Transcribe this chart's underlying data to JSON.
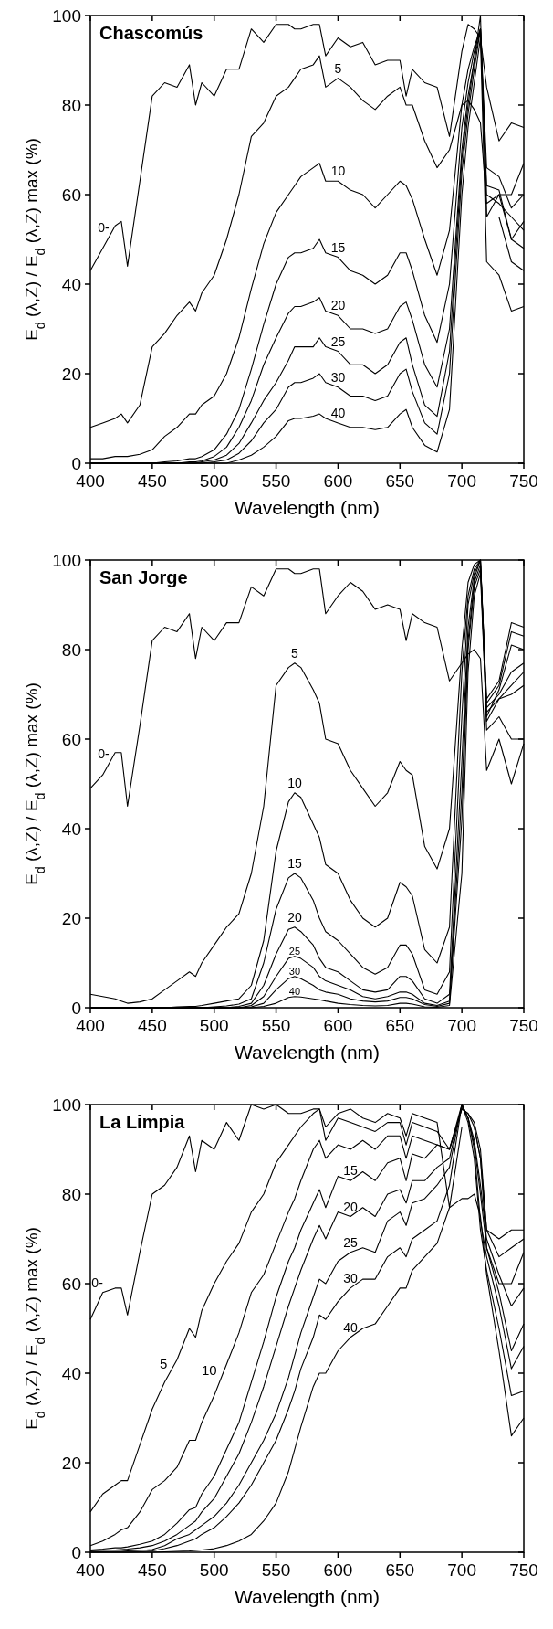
{
  "chart_data": [
    {
      "type": "line",
      "title": "Chascomús",
      "xlabel": "Wavelength (nm)",
      "ylabel": "E$_{d}$ (λ,Z) / E$_{d}$ (λ,Z) max (%)",
      "xlim": [
        400,
        750
      ],
      "ylim": [
        0,
        100
      ],
      "xticks": [
        400,
        450,
        500,
        550,
        600,
        650,
        700,
        750
      ],
      "yticks": [
        0,
        20,
        40,
        60,
        80,
        100
      ],
      "x": [
        400,
        410,
        420,
        425,
        430,
        440,
        450,
        460,
        470,
        480,
        485,
        490,
        500,
        510,
        520,
        530,
        540,
        550,
        560,
        565,
        570,
        580,
        585,
        590,
        600,
        610,
        620,
        630,
        640,
        650,
        655,
        660,
        670,
        680,
        690,
        700,
        705,
        710,
        715,
        720,
        730,
        740,
        750
      ],
      "series": [
        {
          "name": "0-",
          "color": "#000000",
          "values": [
            43,
            48,
            53,
            54,
            44,
            63,
            82,
            85,
            84,
            89,
            80,
            85,
            82,
            88,
            88,
            97,
            94,
            98,
            98,
            97,
            97,
            98,
            98,
            91,
            95,
            93,
            94,
            89,
            90,
            90,
            82,
            88,
            85,
            84,
            73,
            92,
            98,
            97,
            95,
            84,
            72,
            76,
            75
          ]
        },
        {
          "name": "5",
          "color": "#000000",
          "values": [
            8,
            9,
            10,
            11,
            9,
            13,
            26,
            29,
            33,
            36,
            34,
            38,
            42,
            50,
            60,
            73,
            76,
            82,
            84,
            86,
            88,
            89,
            91,
            84,
            86,
            84,
            81,
            79,
            82,
            84,
            80,
            80,
            72,
            66,
            70,
            80,
            81,
            79,
            76,
            58,
            60,
            60,
            67
          ]
        },
        {
          "name": "10",
          "color": "#000000",
          "values": [
            1,
            1,
            1.5,
            1.5,
            1.5,
            2,
            3,
            6,
            8,
            11,
            11,
            13,
            15,
            20,
            28,
            39,
            49,
            56,
            60,
            62,
            64,
            66,
            67,
            63,
            63,
            61,
            60,
            57,
            60,
            63,
            62,
            59,
            50,
            42,
            52,
            80,
            88,
            93,
            97,
            66,
            64,
            57,
            60
          ]
        },
        {
          "name": "15",
          "color": "#000000",
          "values": [
            0,
            0,
            0,
            0,
            0,
            0,
            0,
            0.3,
            0.5,
            1,
            1,
            1.5,
            3,
            6.5,
            12,
            21,
            31,
            40,
            46,
            47,
            47,
            48,
            50,
            47,
            46,
            43,
            42,
            40,
            42,
            47,
            47,
            43,
            33,
            27,
            40,
            75,
            85,
            92,
            97,
            62,
            61,
            50,
            54
          ]
        },
        {
          "name": "20",
          "color": "#000000",
          "values": [
            0,
            0,
            0,
            0,
            0,
            0,
            0,
            0,
            0,
            0.3,
            0.3,
            0.5,
            1.5,
            3.6,
            8,
            14,
            22,
            28,
            33.5,
            35,
            35,
            36,
            37,
            34,
            33,
            30,
            30,
            29,
            30,
            35,
            36,
            32,
            22,
            17,
            30,
            70,
            82,
            90,
            97,
            60,
            58,
            55,
            52
          ]
        },
        {
          "name": "25",
          "color": "#000000",
          "values": [
            0,
            0,
            0,
            0,
            0,
            0,
            0,
            0,
            0,
            0,
            0,
            0.3,
            0.7,
            1.8,
            4.4,
            9,
            14,
            18,
            23,
            26,
            26,
            26,
            28,
            26,
            25,
            22,
            22,
            20,
            22,
            27,
            28,
            22,
            13,
            10.5,
            25,
            68,
            80,
            90,
            100,
            55,
            60,
            50,
            48
          ]
        },
        {
          "name": "30",
          "color": "#000000",
          "values": [
            0,
            0,
            0,
            0,
            0,
            0,
            0,
            0,
            0,
            0,
            0,
            0,
            0.3,
            0.7,
            2.2,
            5,
            9,
            12,
            17,
            18,
            18,
            19,
            20,
            18,
            17,
            15,
            15,
            14,
            15,
            20,
            21,
            16,
            9,
            6.5,
            20,
            65,
            78,
            88,
            97,
            55,
            55,
            45,
            43
          ]
        },
        {
          "name": "40",
          "color": "#000000",
          "values": [
            0,
            0,
            0,
            0,
            0,
            0,
            0,
            0,
            0,
            0,
            0,
            0,
            0,
            0,
            0.7,
            1.8,
            3.6,
            6,
            9.5,
            10,
            10,
            10.5,
            11,
            10,
            9,
            8,
            8,
            7.5,
            8,
            11,
            12,
            8,
            4,
            2.5,
            12,
            60,
            75,
            85,
            95,
            45,
            42,
            34,
            35
          ]
        }
      ]
    },
    {
      "type": "line",
      "title": "San Jorge",
      "xlabel": "Wavelength (nm)",
      "ylabel": "E$_{d}$ (λ,Z) / E$_{d}$ (λ,Z) max (%)",
      "xlim": [
        400,
        750
      ],
      "ylim": [
        0,
        100
      ],
      "xticks": [
        400,
        450,
        500,
        550,
        600,
        650,
        700,
        750
      ],
      "yticks": [
        0,
        20,
        40,
        60,
        80,
        100
      ],
      "x": [
        400,
        410,
        420,
        425,
        430,
        440,
        450,
        460,
        470,
        480,
        485,
        490,
        500,
        510,
        520,
        530,
        540,
        550,
        560,
        565,
        570,
        580,
        585,
        590,
        600,
        610,
        620,
        630,
        640,
        650,
        655,
        660,
        670,
        680,
        690,
        700,
        705,
        710,
        715,
        720,
        730,
        740,
        750
      ],
      "series": [
        {
          "name": "0-",
          "color": "#000000",
          "values": [
            49,
            52,
            57,
            57,
            45,
            63,
            82,
            85,
            84,
            88,
            78,
            85,
            82,
            86,
            86,
            94,
            92,
            98,
            98,
            97,
            97,
            98,
            98,
            88,
            92,
            95,
            93,
            89,
            90,
            89,
            82,
            88,
            86,
            85,
            73,
            77,
            79,
            80,
            78,
            53,
            60,
            50,
            59
          ]
        },
        {
          "name": "5",
          "color": "#000000",
          "values": [
            3,
            2.5,
            2,
            1.5,
            1,
            1.3,
            2,
            4,
            6,
            8,
            7,
            10,
            14,
            18,
            21,
            30,
            45,
            72,
            76,
            77,
            76,
            71,
            68,
            60,
            59,
            53,
            49,
            45,
            48,
            55,
            53,
            52,
            36,
            31,
            40,
            80,
            95,
            99,
            100,
            62,
            65,
            60,
            60
          ]
        },
        {
          "name": "10",
          "color": "#000000",
          "values": [
            0,
            0,
            0,
            0,
            0,
            0,
            0,
            0,
            0.2,
            0.3,
            0.3,
            0.5,
            1,
            1.5,
            2,
            5,
            15,
            35,
            46,
            48,
            47,
            41,
            38,
            32,
            30,
            24,
            20,
            18,
            20,
            28,
            27,
            25,
            13,
            10,
            18,
            75,
            92,
            98,
            100,
            66,
            69,
            72,
            75
          ]
        },
        {
          "name": "15",
          "color": "#000000",
          "values": [
            0,
            0,
            0,
            0,
            0,
            0,
            0,
            0,
            0,
            0,
            0,
            0,
            0.2,
            0.4,
            0.8,
            2,
            10,
            22,
            29,
            30,
            29,
            24,
            20,
            17,
            15,
            12,
            9,
            7.5,
            9,
            14,
            14,
            12,
            4,
            3,
            8,
            65,
            90,
            97,
            100,
            65,
            71,
            81,
            80
          ]
        },
        {
          "name": "20",
          "color": "#000000",
          "values": [
            0,
            0,
            0,
            0,
            0,
            0,
            0,
            0,
            0,
            0,
            0,
            0,
            0,
            0,
            0.3,
            1,
            5,
            12,
            17.5,
            18,
            17,
            14,
            11,
            9,
            8,
            6,
            4,
            3.5,
            4,
            7,
            7,
            6,
            2,
            1,
            3,
            55,
            85,
            96,
            100,
            68,
            72,
            84,
            83
          ]
        },
        {
          "name": "25",
          "color": "#000000",
          "values": [
            0,
            0,
            0,
            0,
            0,
            0,
            0,
            0,
            0,
            0,
            0,
            0,
            0,
            0,
            0,
            0.5,
            2.5,
            7,
            11,
            11.5,
            11,
            9,
            7,
            6,
            5,
            4,
            2.5,
            2,
            2.5,
            3.5,
            3.5,
            3,
            1,
            0.5,
            1.5,
            48,
            82,
            95,
            99,
            69,
            73,
            86,
            85
          ]
        },
        {
          "name": "30",
          "color": "#000000",
          "values": [
            0,
            0,
            0,
            0,
            0,
            0,
            0,
            0,
            0,
            0,
            0,
            0,
            0,
            0,
            0,
            0.2,
            1,
            4,
            6.5,
            7,
            6.5,
            5,
            4,
            3.5,
            3,
            2,
            1.5,
            1.3,
            1.5,
            2.3,
            2.3,
            2,
            0.7,
            0.3,
            1,
            42,
            80,
            94,
            98,
            67,
            70,
            75,
            77
          ]
        },
        {
          "name": "40",
          "color": "#000000",
          "values": [
            0,
            0,
            0,
            0,
            0,
            0,
            0,
            0,
            0,
            0,
            0,
            0,
            0,
            0,
            0,
            0,
            0.3,
            1,
            2.3,
            2.5,
            2.4,
            2,
            1.8,
            1.5,
            1,
            0.7,
            0.5,
            0.4,
            0.5,
            1,
            1,
            0.8,
            0.2,
            0.1,
            0.5,
            30,
            75,
            92,
            97,
            64,
            69,
            70,
            72
          ]
        }
      ]
    },
    {
      "type": "line",
      "title": "La Limpia",
      "xlabel": "Wavelength (nm)",
      "ylabel": "E$_{d}$ (λ,Z) / E$_{d}$ (λ,Z) max (%)",
      "xlim": [
        400,
        750
      ],
      "ylim": [
        0,
        100
      ],
      "xticks": [
        400,
        450,
        500,
        550,
        600,
        650,
        700,
        750
      ],
      "yticks": [
        0,
        20,
        40,
        60,
        80,
        100
      ],
      "x": [
        400,
        410,
        420,
        425,
        430,
        440,
        450,
        460,
        470,
        480,
        485,
        490,
        500,
        510,
        520,
        530,
        540,
        550,
        560,
        565,
        570,
        580,
        585,
        590,
        600,
        610,
        620,
        630,
        640,
        650,
        655,
        660,
        670,
        680,
        690,
        700,
        705,
        710,
        715,
        720,
        730,
        740,
        750
      ],
      "series": [
        {
          "name": "0-",
          "color": "#000000",
          "values": [
            52,
            58,
            59,
            59,
            53,
            67,
            80,
            82,
            86,
            93,
            85,
            92,
            90,
            96,
            92,
            100,
            99,
            100,
            98,
            98,
            98,
            99,
            99,
            95,
            98,
            99,
            97,
            96,
            98,
            97,
            93,
            98,
            97,
            96,
            77,
            95,
            95,
            95,
            88,
            72,
            70,
            72,
            72
          ]
        },
        {
          "name": "5",
          "color": "#000000",
          "values": [
            9,
            13,
            15,
            16,
            16,
            24,
            32,
            38,
            43,
            50,
            48,
            54,
            60,
            65,
            69,
            76,
            80,
            87,
            91,
            93,
            95,
            98,
            99,
            92,
            97,
            96,
            95,
            94,
            96,
            96,
            91,
            96,
            95,
            94,
            90,
            99,
            98,
            96,
            90,
            72,
            66,
            68,
            70
          ]
        },
        {
          "name": "10",
          "color": "#000000",
          "values": [
            1.5,
            2.5,
            4,
            5,
            5.5,
            9,
            14,
            16,
            19,
            25,
            25,
            29,
            35,
            42,
            49,
            58,
            62,
            69,
            76,
            79,
            83,
            90,
            92,
            88,
            91,
            90,
            92,
            90,
            93,
            93,
            88,
            93,
            92,
            91,
            90,
            99,
            98,
            95,
            88,
            68,
            60,
            60,
            67
          ]
        },
        {
          "name": "15",
          "color": "#000000",
          "values": [
            0.5,
            0.7,
            1,
            1,
            1.2,
            1.8,
            2.5,
            4,
            6.5,
            9.5,
            10,
            13,
            17,
            23,
            29,
            38,
            47,
            57,
            65,
            68,
            72,
            78,
            81,
            77,
            84,
            83,
            85,
            83,
            87,
            88,
            83,
            89,
            88,
            91,
            90,
            100,
            97,
            92,
            82,
            70,
            62,
            55,
            59
          ]
        },
        {
          "name": "20",
          "color": "#000000",
          "values": [
            0.3,
            0.4,
            0.5,
            0.6,
            0.7,
            1,
            1.5,
            2.5,
            4,
            6,
            7,
            9,
            12,
            17,
            22,
            29,
            37,
            46,
            55,
            59,
            63,
            70,
            73,
            70,
            76,
            75,
            77,
            75,
            80,
            81,
            78,
            83,
            83,
            86,
            88,
            100,
            97,
            91,
            80,
            68,
            58,
            45,
            51
          ]
        },
        {
          "name": "25",
          "color": "#000000",
          "values": [
            0,
            0.1,
            0.2,
            0.2,
            0.3,
            0.4,
            0.6,
            1.5,
            3,
            4,
            5,
            6,
            8,
            11,
            15,
            20,
            25,
            31,
            39,
            44,
            49,
            57,
            61,
            60,
            65,
            67,
            68,
            67,
            74,
            76,
            73,
            78,
            79,
            82,
            86,
            100,
            97,
            90,
            74,
            66,
            55,
            41,
            46
          ]
        },
        {
          "name": "30",
          "color": "#000000",
          "values": [
            0,
            0,
            0,
            0,
            0,
            0.1,
            0.3,
            0.8,
            1.5,
            2.5,
            3,
            4,
            5.5,
            8,
            11,
            15,
            20,
            25,
            32,
            36,
            41,
            48,
            53,
            52,
            56,
            59,
            61,
            61,
            66,
            68,
            66,
            70,
            72,
            74,
            82,
            100,
            96,
            88,
            72,
            63,
            50,
            35,
            36
          ]
        },
        {
          "name": "40",
          "color": "#000000",
          "values": [
            0,
            0,
            0,
            0,
            0,
            0,
            0,
            0.1,
            0.2,
            0.3,
            0.4,
            0.5,
            0.8,
            1.5,
            2.5,
            4,
            7,
            11,
            18,
            23,
            28,
            37,
            40,
            40,
            45,
            48,
            50,
            51,
            55,
            59,
            59,
            63,
            66,
            69,
            77,
            79,
            79,
            80,
            75,
            62,
            45,
            26,
            30
          ]
        }
      ]
    }
  ]
}
